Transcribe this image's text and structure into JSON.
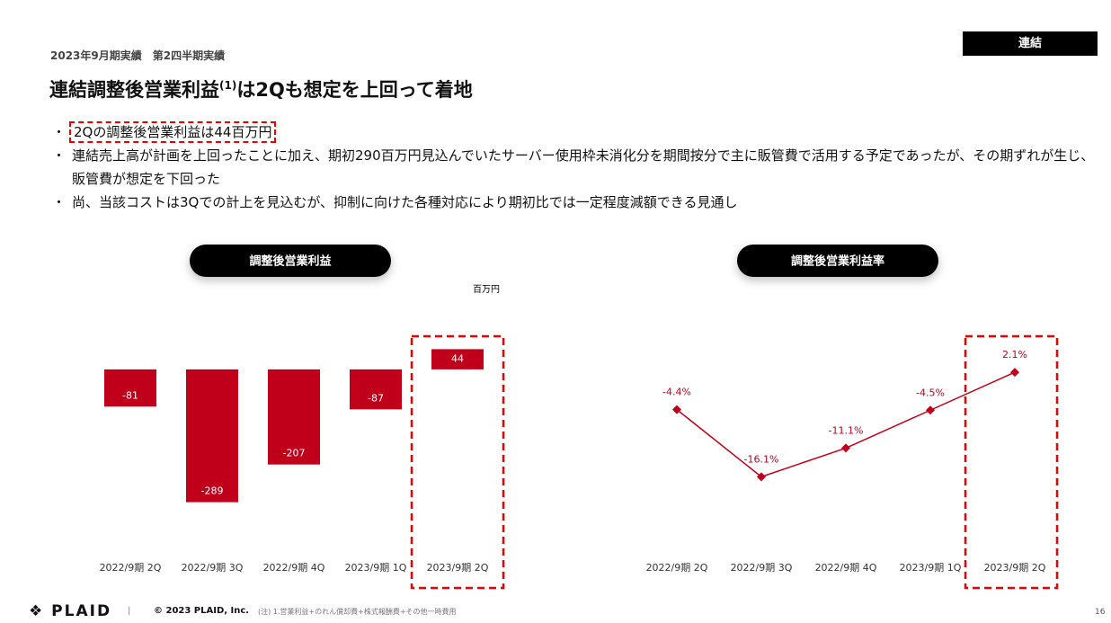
{
  "header": {
    "period": "2023年9月期実績　第2四半期実績",
    "tag": "連結",
    "title": "連結調整後営業利益",
    "title_sup": "(1)",
    "title_rest": "は2Qも想定を上回って着地"
  },
  "bullets": [
    "2Qの調整後営業利益は44百万円",
    "連結売上高が計画を上回ったことに加え、期初290百万円見込んでいたサーバー使用枠未消化分を期間按分で主に販管費で活用する予定であったが、その期ずれが生じ、販管費が想定を下回った",
    "尚、当該コストは3Qでの計上を見込むが、抑制に向けた各種対応により期初比では一定程度減額できる見通し"
  ],
  "chart_data": [
    {
      "type": "bar",
      "title": "調整後営業利益",
      "unit": "百万円",
      "categories": [
        "2022/9期 2Q",
        "2022/9期 3Q",
        "2022/9期 4Q",
        "2023/9期 1Q",
        "2023/9期 2Q"
      ],
      "values": [
        -81,
        -289,
        -207,
        -87,
        44
      ],
      "color": "#c0001a",
      "ylim": [
        -370,
        80
      ]
    },
    {
      "type": "line",
      "title": "調整後営業利益率",
      "categories": [
        "2022/9期 2Q",
        "2022/9期 3Q",
        "2022/9期 4Q",
        "2023/9期 1Q",
        "2023/9期 2Q"
      ],
      "values": [
        -4.4,
        -16.1,
        -11.1,
        -4.5,
        2.1
      ],
      "value_labels": [
        "-4.4%",
        "-16.1%",
        "-11.1%",
        "-4.5%",
        "2.1%"
      ],
      "color": "#c0001a",
      "ylim": [
        -27,
        9
      ]
    }
  ],
  "footer": {
    "logo": "PLAID",
    "separator": "|",
    "copyright": "© 2023 PLAID, Inc.",
    "note": "(注) 1.営業利益+のれん償却費+株式報酬費+その他一時費用",
    "page": "16"
  }
}
